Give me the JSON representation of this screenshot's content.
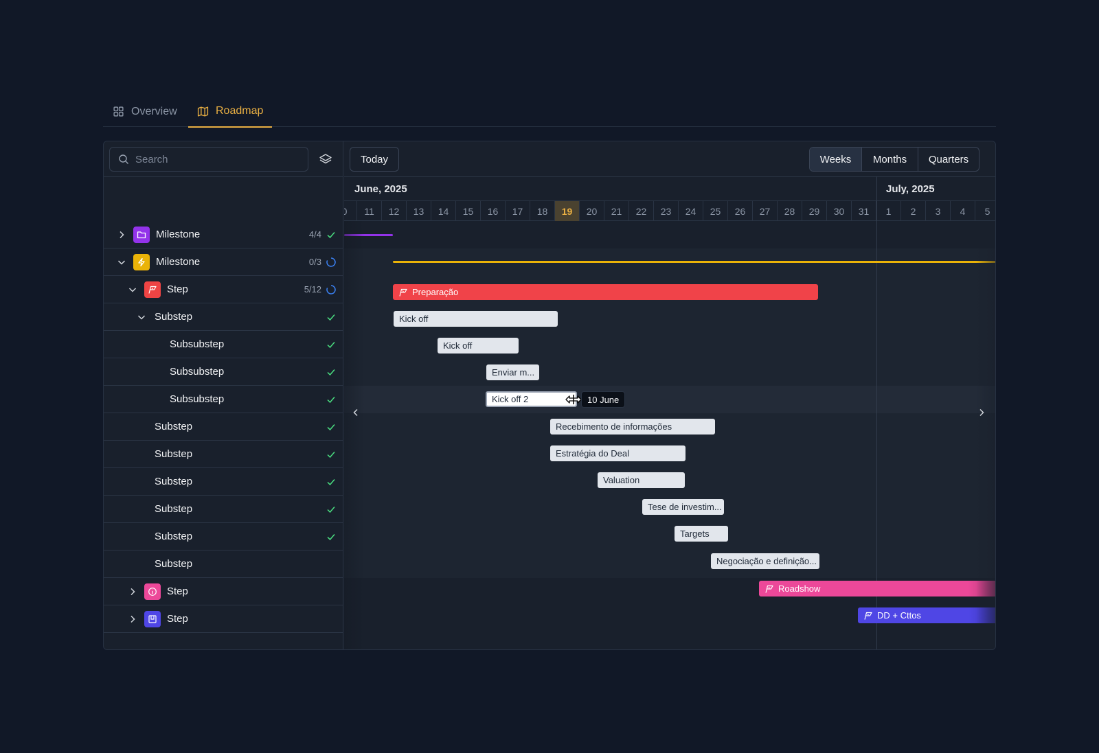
{
  "tabs": [
    {
      "label": "Overview",
      "icon": "grid-icon",
      "active": false
    },
    {
      "label": "Roadmap",
      "icon": "map-icon",
      "active": true
    }
  ],
  "search": {
    "placeholder": "Search"
  },
  "toolbar": {
    "today_label": "Today",
    "views": [
      "Weeks",
      "Months",
      "Quarters"
    ],
    "active_view": "Weeks"
  },
  "timeline": {
    "months": [
      "June, 2025",
      "July, 2025"
    ],
    "days": [
      "0",
      "11",
      "12",
      "13",
      "14",
      "15",
      "16",
      "17",
      "18",
      "19",
      "20",
      "21",
      "22",
      "23",
      "24",
      "25",
      "26",
      "27",
      "28",
      "29",
      "30",
      "31",
      "1",
      "2",
      "3",
      "4",
      "5"
    ],
    "today": "19"
  },
  "rows": [
    {
      "label": "Milestone",
      "count": "4/4",
      "status": "done",
      "badge_color": "#9333ea",
      "icon": "folder-icon"
    },
    {
      "label": "Milestone",
      "count": "0/3",
      "status": "in-progress",
      "badge_color": "#eab308",
      "icon": "bolt-icon"
    },
    {
      "label": "Step",
      "count": "5/12",
      "status": "in-progress",
      "badge_color": "#ef4444",
      "icon": "flag-icon"
    },
    {
      "label": "Substep",
      "status": "done"
    },
    {
      "label": "Subsubstep",
      "status": "done"
    },
    {
      "label": "Subsubstep",
      "status": "done"
    },
    {
      "label": "Subsubstep",
      "status": "done"
    },
    {
      "label": "Substep",
      "status": "done"
    },
    {
      "label": "Substep",
      "status": "done"
    },
    {
      "label": "Substep",
      "status": "done"
    },
    {
      "label": "Substep",
      "status": "done"
    },
    {
      "label": "Substep",
      "status": "done"
    },
    {
      "label": "Substep",
      "status": ""
    },
    {
      "label": "Step",
      "badge_color": "#ec4899",
      "icon": "info-icon"
    },
    {
      "label": "Step",
      "badge_color": "#4f46e5",
      "icon": "board-icon"
    }
  ],
  "bars": [
    {
      "label": "Preparação",
      "color": "#f04349"
    },
    {
      "label": "Kick off"
    },
    {
      "label": "Kick off"
    },
    {
      "label": "Enviar m..."
    },
    {
      "label": "Kick off 2"
    },
    {
      "label": "Recebimento de informações"
    },
    {
      "label": "Estratégia do Deal"
    },
    {
      "label": "Valuation"
    },
    {
      "label": "Tese de investim..."
    },
    {
      "label": "Targets"
    },
    {
      "label": "Negociação e definição..."
    },
    {
      "label": "Roadshow",
      "color": "#ec4899"
    },
    {
      "label": "DD + Cttos",
      "color": "#4f46e5"
    }
  ],
  "tooltip": {
    "label": "10 June"
  },
  "colors": {
    "accent": "#eab043",
    "milestone_line_1": "#9333ea",
    "milestone_line_2": "#eab308",
    "check": "#4ade80",
    "progress": "#3b82f6"
  }
}
